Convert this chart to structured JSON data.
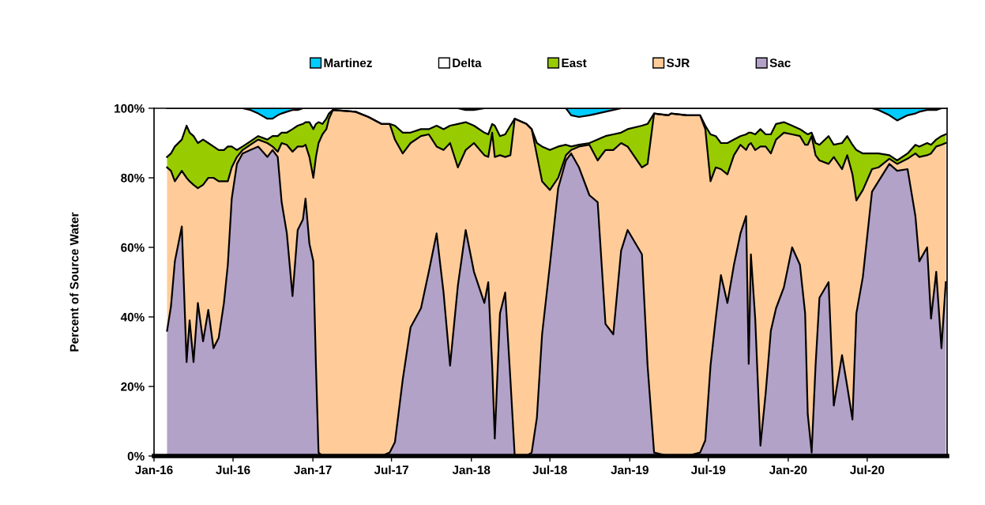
{
  "chart_data": {
    "type": "area",
    "stacked": true,
    "ylabel": "Percent of Source Water",
    "x": [
      "2016-01-31",
      "2016-02-09",
      "2016-02-18",
      "2016-03-05",
      "2016-03-16",
      "2016-03-23",
      "2016-04-01",
      "2016-04-11",
      "2016-04-23",
      "2016-05-05",
      "2016-05-17",
      "2016-05-29",
      "2016-06-10",
      "2016-06-19",
      "2016-06-28",
      "2016-07-10",
      "2016-07-23",
      "2016-08-10",
      "2016-08-28",
      "2016-09-18",
      "2016-09-30",
      "2016-10-12",
      "2016-10-21",
      "2016-11-02",
      "2016-11-15",
      "2016-11-27",
      "2016-12-09",
      "2016-12-15",
      "2016-12-24",
      "2017-01-02",
      "2017-01-08",
      "2017-01-14",
      "2017-01-23",
      "2017-02-01",
      "2017-02-07",
      "2017-02-16",
      "2017-04-09",
      "2017-05-09",
      "2017-06-08",
      "2017-06-27",
      "2017-07-09",
      "2017-07-27",
      "2017-08-14",
      "2017-09-07",
      "2017-09-25",
      "2017-10-13",
      "2017-10-29",
      "2017-11-13",
      "2017-12-01",
      "2017-12-19",
      "2018-01-07",
      "2018-01-31",
      "2018-02-09",
      "2018-02-18",
      "2018-02-24",
      "2018-03-08",
      "2018-03-20",
      "2018-04-01",
      "2018-04-11",
      "2018-05-08",
      "2018-05-20",
      "2018-06-01",
      "2018-06-13",
      "2018-07-01",
      "2018-07-20",
      "2018-08-07",
      "2018-08-19",
      "2018-09-06",
      "2018-09-30",
      "2018-10-19",
      "2018-11-06",
      "2018-11-24",
      "2018-12-12",
      "2018-12-27",
      "2019-01-29",
      "2019-02-11",
      "2019-02-26",
      "2019-03-31",
      "2019-04-06",
      "2019-05-13",
      "2019-06-12",
      "2019-06-24",
      "2019-07-06",
      "2019-07-18",
      "2019-07-30",
      "2019-08-14",
      "2019-08-29",
      "2019-09-13",
      "2019-09-26",
      "2019-10-02",
      "2019-10-07",
      "2019-10-17",
      "2019-10-29",
      "2019-11-10",
      "2019-11-22",
      "2019-12-04",
      "2019-12-22",
      "2020-01-10",
      "2020-01-28",
      "2020-02-09",
      "2020-02-15",
      "2020-02-24",
      "2020-03-04",
      "2020-03-13",
      "2020-04-03",
      "2020-04-15",
      "2020-05-04",
      "2020-05-16",
      "2020-05-28",
      "2020-06-06",
      "2020-06-21",
      "2020-07-12",
      "2020-07-27",
      "2020-08-21",
      "2020-09-08",
      "2020-10-02",
      "2020-10-20",
      "2020-10-29",
      "2020-11-16",
      "2020-11-25",
      "2020-12-07",
      "2020-12-19",
      "2020-12-29"
    ],
    "series": [
      {
        "name": "Sac",
        "color": "#b3a2c7",
        "values": [
          36,
          43,
          56,
          66,
          27,
          39,
          27,
          44,
          33,
          42,
          31,
          34,
          44,
          55,
          74,
          84,
          87,
          88,
          89,
          86,
          88,
          86,
          73,
          64,
          46,
          65,
          68,
          74,
          61,
          56,
          26,
          1,
          0,
          0,
          0,
          0,
          0,
          0,
          0,
          1,
          4,
          22,
          37,
          42.5,
          53,
          64,
          47,
          26,
          49,
          65,
          53,
          44,
          50,
          26,
          5,
          41,
          47,
          22,
          0,
          0,
          1,
          11,
          35,
          55,
          77,
          85,
          87,
          83,
          75,
          73,
          38,
          35,
          59,
          65,
          58,
          26,
          1,
          0,
          0,
          0,
          1,
          4.5,
          26,
          39.5,
          52,
          44,
          55,
          64,
          69,
          26.5,
          58,
          39.5,
          3,
          18,
          36,
          42.5,
          48.5,
          60,
          55,
          41,
          12,
          1,
          26,
          45.5,
          50,
          14.5,
          29,
          20,
          10.5,
          41,
          51.5,
          76,
          79,
          84,
          82,
          82.5,
          69,
          56,
          60,
          39.5,
          53,
          31,
          50
        ]
      },
      {
        "name": "SJR",
        "color": "#ffcc99",
        "values": [
          47,
          39,
          23,
          16,
          53,
          40,
          51,
          33,
          45,
          38,
          49,
          45,
          35,
          24,
          9,
          2,
          1,
          1.5,
          2,
          4,
          1,
          1.5,
          17,
          25.5,
          41.5,
          24,
          21,
          15.5,
          25,
          24,
          60,
          89,
          92.5,
          94,
          97,
          99.5,
          99,
          97.5,
          95.5,
          94.5,
          87,
          65,
          53,
          49.5,
          39.5,
          25,
          41,
          64,
          34,
          23,
          37,
          42.5,
          36,
          67,
          81,
          45.5,
          39,
          64.5,
          97,
          95.5,
          93,
          75.5,
          44,
          21.5,
          3,
          1.5,
          1,
          6,
          14.5,
          12,
          50,
          53,
          31,
          24,
          25,
          58,
          97.5,
          98,
          98.5,
          98,
          97,
          89.5,
          53,
          43.5,
          30.5,
          37,
          31.5,
          25.5,
          19,
          63,
          32,
          48.5,
          86,
          71,
          51,
          48.5,
          44.5,
          32.5,
          37,
          48.5,
          77.5,
          91,
          60.5,
          39.5,
          34,
          71.5,
          53.5,
          66.5,
          70.5,
          32.5,
          25,
          6.5,
          4,
          1.5,
          2,
          3,
          18,
          30,
          26.5,
          47.5,
          36,
          58.5,
          40
        ]
      },
      {
        "name": "East",
        "color": "#99cc00",
        "values": [
          3,
          5,
          10,
          9,
          15,
          14,
          14,
          13,
          13,
          10,
          9,
          9,
          9,
          10,
          6,
          2,
          1,
          1,
          1,
          1,
          3,
          4.5,
          3,
          3.5,
          6.5,
          6,
          6.5,
          6.5,
          10,
          14,
          9.5,
          6,
          3,
          3,
          1.5,
          0,
          0,
          0,
          0,
          0,
          4,
          6,
          3,
          2,
          1.5,
          6,
          6,
          5,
          12.5,
          8,
          5,
          6.5,
          6.5,
          2.5,
          9,
          5.5,
          6.5,
          8.5,
          0,
          0,
          0,
          3.5,
          10,
          11.5,
          9,
          3,
          1,
          0.5,
          0.5,
          6,
          4,
          4.5,
          3,
          5,
          12,
          11.5,
          0,
          0,
          0,
          0,
          0,
          1,
          13.5,
          9,
          7.5,
          9,
          4.5,
          2.5,
          4.5,
          3.5,
          3,
          4.5,
          5,
          3.5,
          5.5,
          4.5,
          3,
          2.5,
          2,
          3.5,
          3,
          1,
          3.5,
          4.5,
          8,
          3.5,
          7.5,
          5.5,
          8.5,
          14.5,
          10.5,
          4.5,
          4,
          1,
          1,
          1.5,
          2.5,
          3,
          3.5,
          2.5,
          2,
          2.5,
          2.5
        ]
      },
      {
        "name": "Delta",
        "color": "#ffffff",
        "values": [
          14,
          13,
          11,
          9,
          5,
          7,
          8,
          10,
          9,
          10,
          11,
          12,
          12,
          11,
          11,
          12,
          11,
          9,
          6.5,
          6,
          5,
          6,
          5.5,
          6,
          5.5,
          4.5,
          4.5,
          4,
          4,
          6,
          4.5,
          4,
          4.5,
          3,
          1.5,
          0.5,
          1,
          2.5,
          4.5,
          4.5,
          5,
          7,
          7,
          6,
          6,
          5,
          6,
          5,
          4.5,
          3.5,
          4.5,
          7,
          7.5,
          4.5,
          5,
          8,
          7.5,
          5,
          3,
          4.5,
          6,
          10,
          11,
          12,
          11,
          10.5,
          9,
          8,
          8,
          7.5,
          7,
          7,
          7,
          6,
          5,
          4.5,
          1.5,
          2,
          1.5,
          2,
          2,
          5,
          7.5,
          8,
          10,
          10,
          9,
          8,
          7.5,
          7,
          7,
          7.5,
          6,
          7.5,
          7.5,
          4.5,
          4,
          5,
          6,
          7,
          7.5,
          7,
          10,
          10.5,
          8,
          10.5,
          10,
          8,
          10.5,
          12,
          13,
          13,
          12.5,
          11.5,
          11.5,
          11,
          9,
          10,
          9.5,
          10,
          8.5,
          8,
          7.5
        ]
      },
      {
        "name": "Martinez",
        "color": "#00ccff",
        "values": [
          0,
          0,
          0,
          0,
          0,
          0,
          0,
          0,
          0,
          0,
          0,
          0,
          0,
          0,
          0,
          0,
          0,
          0.5,
          1.5,
          3,
          3,
          2,
          1.5,
          1,
          0.5,
          0.5,
          0,
          0,
          0,
          0,
          0,
          0,
          0,
          0,
          0,
          0,
          0,
          0,
          0,
          0,
          0,
          0,
          0,
          0,
          0,
          0,
          0,
          0,
          0,
          0.5,
          0.5,
          0,
          0,
          0,
          0,
          0,
          0,
          0,
          0,
          0,
          0,
          0,
          0,
          0,
          0,
          0,
          2,
          2.5,
          2,
          1.5,
          1,
          0.5,
          0,
          0,
          0,
          0,
          0,
          0,
          0,
          0,
          0,
          0,
          0,
          0,
          0,
          0,
          0,
          0,
          0,
          0,
          0,
          0,
          0,
          0,
          0,
          0,
          0,
          0,
          0,
          0,
          0,
          0,
          0,
          0,
          0,
          0,
          0,
          0,
          0,
          0,
          0,
          0,
          0.5,
          2,
          3.5,
          2,
          1.5,
          1,
          0.5,
          0.5,
          0.5,
          0,
          0
        ]
      }
    ],
    "xlim": [
      "2016-01-01",
      "2021-01-01"
    ],
    "xticks": [
      {
        "value": "2016-01-01",
        "label": "Jan-16"
      },
      {
        "value": "2016-07-01",
        "label": "Jul-16"
      },
      {
        "value": "2017-01-01",
        "label": "Jan-17"
      },
      {
        "value": "2017-07-01",
        "label": "Jul-17"
      },
      {
        "value": "2018-01-01",
        "label": "Jan-18"
      },
      {
        "value": "2018-07-01",
        "label": "Jul-18"
      },
      {
        "value": "2019-01-01",
        "label": "Jan-19"
      },
      {
        "value": "2019-07-01",
        "label": "Jul-19"
      },
      {
        "value": "2020-01-01",
        "label": "Jan-20"
      },
      {
        "value": "2020-07-01",
        "label": "Jul-20"
      }
    ],
    "ylim": [
      0,
      100
    ],
    "yticks": [
      {
        "value": 0,
        "label": "0%"
      },
      {
        "value": 20,
        "label": "20%"
      },
      {
        "value": 40,
        "label": "40%"
      },
      {
        "value": 60,
        "label": "60%"
      },
      {
        "value": 80,
        "label": "80%"
      },
      {
        "value": 100,
        "label": "100%"
      }
    ],
    "grid": false,
    "legend": "top"
  }
}
